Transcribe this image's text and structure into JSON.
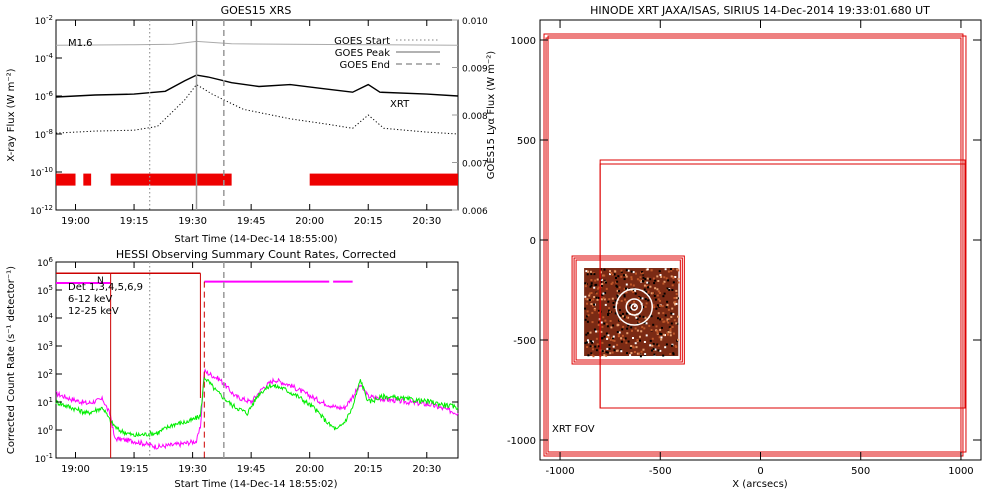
{
  "chart_data": [
    {
      "type": "line",
      "title": "GOES15 XRS",
      "xlabel": "Start Time (14-Dec-14 18:55:00)",
      "ylabel": "X-ray Flux (W m⁻²)",
      "ylabel_right": "GOES15 Lyα Flux (W m⁻²)",
      "x_range_min": [
        0,
        103
      ],
      "x_ticks": [
        {
          "t": 5,
          "label": "19:00"
        },
        {
          "t": 20,
          "label": "19:15"
        },
        {
          "t": 35,
          "label": "19:30"
        },
        {
          "t": 50,
          "label": "19:45"
        },
        {
          "t": 65,
          "label": "20:00"
        },
        {
          "t": 80,
          "label": "20:15"
        },
        {
          "t": 95,
          "label": "20:30"
        }
      ],
      "ylim_log10": [
        -12,
        -2
      ],
      "y_ticks": [
        {
          "exp": -2
        },
        {
          "exp": -4
        },
        {
          "exp": -6
        },
        {
          "exp": -8
        },
        {
          "exp": -10
        },
        {
          "exp": -12
        }
      ],
      "y_right_range": [
        0.006,
        0.01
      ],
      "y_right_ticks": [
        "0.010",
        "0.009",
        "0.008",
        "0.007",
        "0.006"
      ],
      "annotations": [
        {
          "text": "M1.6"
        },
        {
          "text": "XRT",
          "color": "#cc0000"
        }
      ],
      "legend": {
        "placement": "top-right",
        "entries": [
          {
            "name": "GOES Start",
            "style": "dotted"
          },
          {
            "name": "GOES Peak",
            "style": "solid"
          },
          {
            "name": "GOES End",
            "style": "dashed"
          }
        ]
      },
      "markers": {
        "start": 24,
        "peak": 36,
        "end": 43
      },
      "series": [
        {
          "name": "long",
          "color": "#000000",
          "points": [
            [
              0,
              -6.05
            ],
            [
              10,
              -5.95
            ],
            [
              20,
              -5.9
            ],
            [
              28,
              -5.75
            ],
            [
              33,
              -5.2
            ],
            [
              36,
              -4.9
            ],
            [
              39,
              -5.0
            ],
            [
              45,
              -5.3
            ],
            [
              52,
              -5.5
            ],
            [
              60,
              -5.4
            ],
            [
              68,
              -5.6
            ],
            [
              76,
              -5.8
            ],
            [
              80,
              -5.4
            ],
            [
              83,
              -5.8
            ],
            [
              95,
              -5.9
            ],
            [
              103,
              -6.0
            ]
          ]
        },
        {
          "name": "short",
          "color": "#000000",
          "style": "dotted",
          "points": [
            [
              0,
              -7.95
            ],
            [
              10,
              -7.85
            ],
            [
              20,
              -7.8
            ],
            [
              26,
              -7.6
            ],
            [
              33,
              -6.2
            ],
            [
              36,
              -5.4
            ],
            [
              40,
              -5.9
            ],
            [
              48,
              -6.7
            ],
            [
              60,
              -7.2
            ],
            [
              70,
              -7.5
            ],
            [
              76,
              -7.7
            ],
            [
              80,
              -7.0
            ],
            [
              84,
              -7.7
            ],
            [
              95,
              -7.9
            ],
            [
              103,
              -8.0
            ]
          ]
        },
        {
          "name": "lyman",
          "color": "#aaaaaa",
          "points": [
            [
              0,
              0.00947
            ],
            [
              20,
              0.00948
            ],
            [
              30,
              0.00949
            ],
            [
              36,
              0.00955
            ],
            [
              45,
              0.0095
            ],
            [
              60,
              0.00949
            ],
            [
              80,
              0.00948
            ],
            [
              103,
              0.00947
            ]
          ]
        }
      ],
      "xrt_coverage_min": [
        [
          0,
          5
        ],
        [
          7,
          9
        ],
        [
          14,
          45
        ],
        [
          65,
          103
        ]
      ],
      "xrt_coverage_level": -10.4
    },
    {
      "type": "line",
      "title": "HESSI Observing Summary Count Rates, Corrected",
      "xlabel": "Start Time (14-Dec-14 18:55:02)",
      "ylabel": "Corrected Count Rate (s⁻¹ detector⁻¹)",
      "x_range_min": [
        0,
        103
      ],
      "x_ticks": [
        {
          "t": 5,
          "label": "19:00"
        },
        {
          "t": 20,
          "label": "19:15"
        },
        {
          "t": 35,
          "label": "19:30"
        },
        {
          "t": 50,
          "label": "19:45"
        },
        {
          "t": 65,
          "label": "20:00"
        },
        {
          "t": 80,
          "label": "20:15"
        },
        {
          "t": 95,
          "label": "20:30"
        }
      ],
      "ylim_log10": [
        -1,
        6
      ],
      "y_ticks": [
        {
          "exp": 6
        },
        {
          "exp": 5
        },
        {
          "exp": 4
        },
        {
          "exp": 3
        },
        {
          "exp": 2
        },
        {
          "exp": 1
        },
        {
          "exp": 0
        },
        {
          "exp": -1
        }
      ],
      "legend": {
        "placement": "top-left",
        "entries": [
          {
            "name": "Det 1,3,4,5,6,9",
            "color": "#000000"
          },
          {
            "name": "6-12 keV",
            "color": "#ff00ff"
          },
          {
            "name": "12-25 keV",
            "color": "#00ee00"
          }
        ]
      },
      "annotations": [
        {
          "text": "N",
          "color": "#cc0000"
        }
      ],
      "night_intervals": [
        [
          0,
          14
        ],
        [
          14,
          37
        ]
      ],
      "saa_level_exp": 5.6,
      "markers": {
        "start": 24,
        "end": 43
      },
      "red_dashed_t": 38,
      "series": [
        {
          "name": "6-12 keV",
          "color": "#ff00ff",
          "points": [
            [
              0,
              1.3
            ],
            [
              4,
              1.1
            ],
            [
              8,
              0.95
            ],
            [
              12,
              1.1
            ],
            [
              14,
              0.5
            ],
            [
              15,
              -0.3
            ],
            [
              20,
              -0.4
            ],
            [
              26,
              -0.6
            ],
            [
              32,
              -0.5
            ],
            [
              36,
              -0.4
            ],
            [
              37,
              0.1
            ],
            [
              38,
              2.1
            ],
            [
              42,
              1.8
            ],
            [
              46,
              1.2
            ],
            [
              50,
              1.0
            ],
            [
              53,
              1.5
            ],
            [
              56,
              1.8
            ],
            [
              60,
              1.6
            ],
            [
              64,
              1.3
            ],
            [
              68,
              1.0
            ],
            [
              72,
              0.8
            ],
            [
              74,
              0.8
            ],
            [
              76,
              1.2
            ],
            [
              78,
              1.6
            ],
            [
              80,
              1.2
            ],
            [
              84,
              1.1
            ],
            [
              90,
              1.0
            ],
            [
              96,
              0.9
            ],
            [
              103,
              0.6
            ]
          ]
        },
        {
          "name": "12-25 keV",
          "color": "#00ee00",
          "points": [
            [
              0,
              1.0
            ],
            [
              4,
              0.8
            ],
            [
              8,
              0.6
            ],
            [
              12,
              0.8
            ],
            [
              14,
              0.3
            ],
            [
              16,
              0.0
            ],
            [
              20,
              -0.2
            ],
            [
              26,
              -0.1
            ],
            [
              30,
              0.2
            ],
            [
              34,
              0.3
            ],
            [
              37,
              0.5
            ],
            [
              38,
              1.9
            ],
            [
              41,
              1.4
            ],
            [
              45,
              0.9
            ],
            [
              49,
              0.6
            ],
            [
              52,
              1.3
            ],
            [
              55,
              1.6
            ],
            [
              58,
              1.5
            ],
            [
              62,
              1.2
            ],
            [
              66,
              0.8
            ],
            [
              70,
              0.2
            ],
            [
              72,
              0.0
            ],
            [
              74,
              0.3
            ],
            [
              76,
              0.8
            ],
            [
              78,
              1.8
            ],
            [
              80,
              1.0
            ],
            [
              84,
              1.2
            ],
            [
              90,
              1.1
            ],
            [
              96,
              1.0
            ],
            [
              103,
              0.8
            ]
          ]
        },
        {
          "name": "6-12 keV attenuator",
          "color": "#ff00ff",
          "segments": [
            [
              [
                0,
                5.25
              ],
              [
                14,
                5.25
              ]
            ],
            [
              [
                38,
                5.3
              ],
              [
                70,
                5.3
              ]
            ],
            [
              [
                71,
                5.3
              ],
              [
                76,
                5.3
              ]
            ]
          ]
        }
      ]
    },
    {
      "type": "diagram",
      "title": "HINODE XRT JAXA/ISAS, SIRIUS 14-Dec-2014 19:33:01.680 UT",
      "xlabel": "X (arcsecs)",
      "xlim": [
        -1100,
        1100
      ],
      "ylim": [
        -1100,
        1100
      ],
      "x_ticks": [
        -1000,
        -500,
        0,
        500,
        1000
      ],
      "y_ticks": [
        1000,
        500,
        0,
        -500,
        -1000
      ],
      "annotations": [
        {
          "text": "XRT FOV",
          "color": "#cc0000"
        }
      ],
      "fov_boxes": [
        [
          -1080,
          1030,
          1010,
          -1080
        ],
        [
          -1070,
          1010,
          1000,
          -1070
        ],
        [
          -1060,
          1020,
          1025,
          -1060
        ],
        [
          -800,
          400,
          1020,
          -840
        ],
        [
          -800,
          380,
          1020,
          -840
        ],
        [
          -940,
          -80,
          -380,
          -620
        ],
        [
          -930,
          -90,
          -390,
          -610
        ],
        [
          -920,
          -100,
          -400,
          -600
        ]
      ],
      "image_box": [
        -880,
        -140,
        -410,
        -580
      ],
      "circles": [
        {
          "cx": -630,
          "cy": -335,
          "r": 90,
          "color": "#ffffff"
        },
        {
          "cx": -630,
          "cy": -335,
          "r": 40,
          "color": "#ffffff"
        },
        {
          "cx": -630,
          "cy": -335,
          "r": 15,
          "color": "#ffffff"
        }
      ]
    }
  ]
}
